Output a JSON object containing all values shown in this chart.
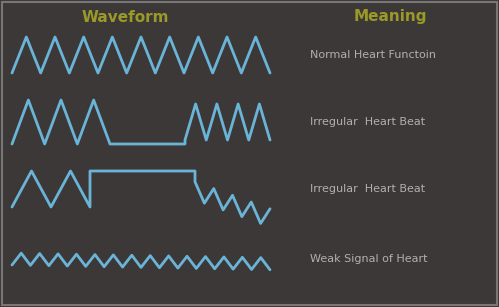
{
  "background_color": "#3d3838",
  "waveform_color": "#6ab4d8",
  "waveform_linewidth": 2.0,
  "title_color": "#9a9a28",
  "label_color": "#b0b0b0",
  "title_waveform": "Waveform",
  "title_meaning": "Meaning",
  "labels": [
    "Normal Heart Functoin",
    "Irregular  Heart Beat",
    "Irregular  Heart Beat",
    "Weak Signal of Heart"
  ],
  "label_fontsize": 8.0,
  "title_fontsize": 11.0
}
